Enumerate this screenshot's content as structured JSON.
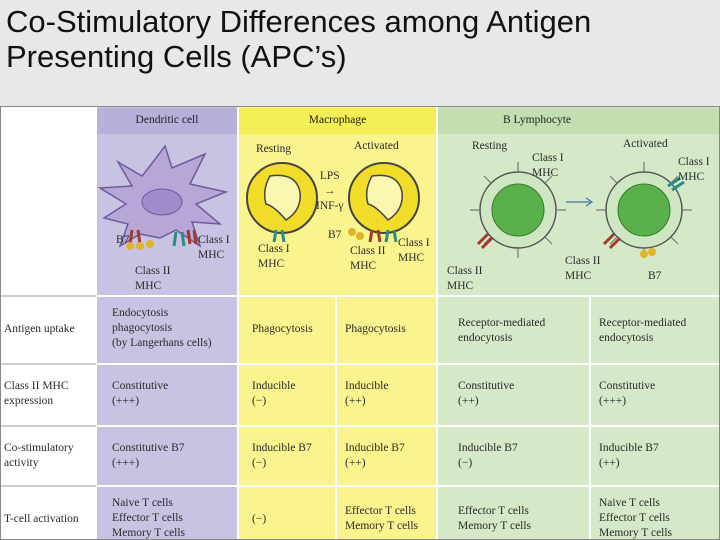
{
  "title": "Co-Stimulatory Differences among Antigen Presenting Cells (APC’s)",
  "colors": {
    "dendritic": "#c9c3e3",
    "dendritic_header": "#b7b0db",
    "macrophage": "#f9f48e",
    "macrophage_header": "#f4ee55",
    "bcell": "#d5e8c7",
    "bcell_header": "#c3deb1",
    "cell_purple": "#b7a6d8",
    "cell_yellow": "#f1dc2a",
    "cell_green": "#5ab04a"
  },
  "columns": {
    "dendritic": "Dendritic cell",
    "macrophage": "Macrophage",
    "bcell": "B Lymphocyte"
  },
  "diagram": {
    "dendritic": {
      "b7": "B7",
      "class1": "Class I\nMHC",
      "class2": "Class II\nMHC"
    },
    "macrophage": {
      "resting": "Resting",
      "activated": "Activated",
      "stimulus": "LPS\n→\nINF-γ",
      "class1": "Class I\nMHC",
      "b7": "B7",
      "class2": "Class II\nMHC",
      "class1_act": "Class I\nMHC"
    },
    "bcell": {
      "resting": "Resting",
      "activated": "Activated",
      "class1": "Class I\nMHC",
      "class2": "Class II\nMHC",
      "class1_act": "Class I\nMHC",
      "class2_act": "Class II\nMHC",
      "b7": "B7"
    }
  },
  "rows": [
    {
      "label": "Antigen uptake",
      "dendritic": "Endocytosis\nphagocytosis\n(by Langerhans cells)",
      "mac_resting": "Phagocytosis",
      "mac_activated": "Phagocytosis",
      "b_resting": "Receptor-mediated\nendocytosis",
      "b_activated": "Receptor-mediated\nendocytosis"
    },
    {
      "label": "Class II MHC\nexpression",
      "dendritic": "Constitutive\n(+++)",
      "mac_resting": "Inducible\n(−)",
      "mac_activated": "Inducible\n(++)",
      "b_resting": "Constitutive\n(++)",
      "b_activated": "Constitutive\n(+++)"
    },
    {
      "label": "Co-stimulatory\nactivity",
      "dendritic": "Constitutive B7\n(+++)",
      "mac_resting": "Inducible B7\n(−)",
      "mac_activated": "Inducible B7\n(++)",
      "b_resting": "Inducible B7\n(−)",
      "b_activated": "Inducible B7\n(++)"
    },
    {
      "label": "T-cell activation",
      "dendritic": "Naive T cells\nEffector T cells\nMemory T cells",
      "mac_resting": "(−)",
      "mac_activated": "Effector T cells\nMemory T cells",
      "b_resting": "Effector T cells\nMemory T cells",
      "b_activated": "Naive T cells\nEffector T cells\nMemory T cells"
    }
  ]
}
